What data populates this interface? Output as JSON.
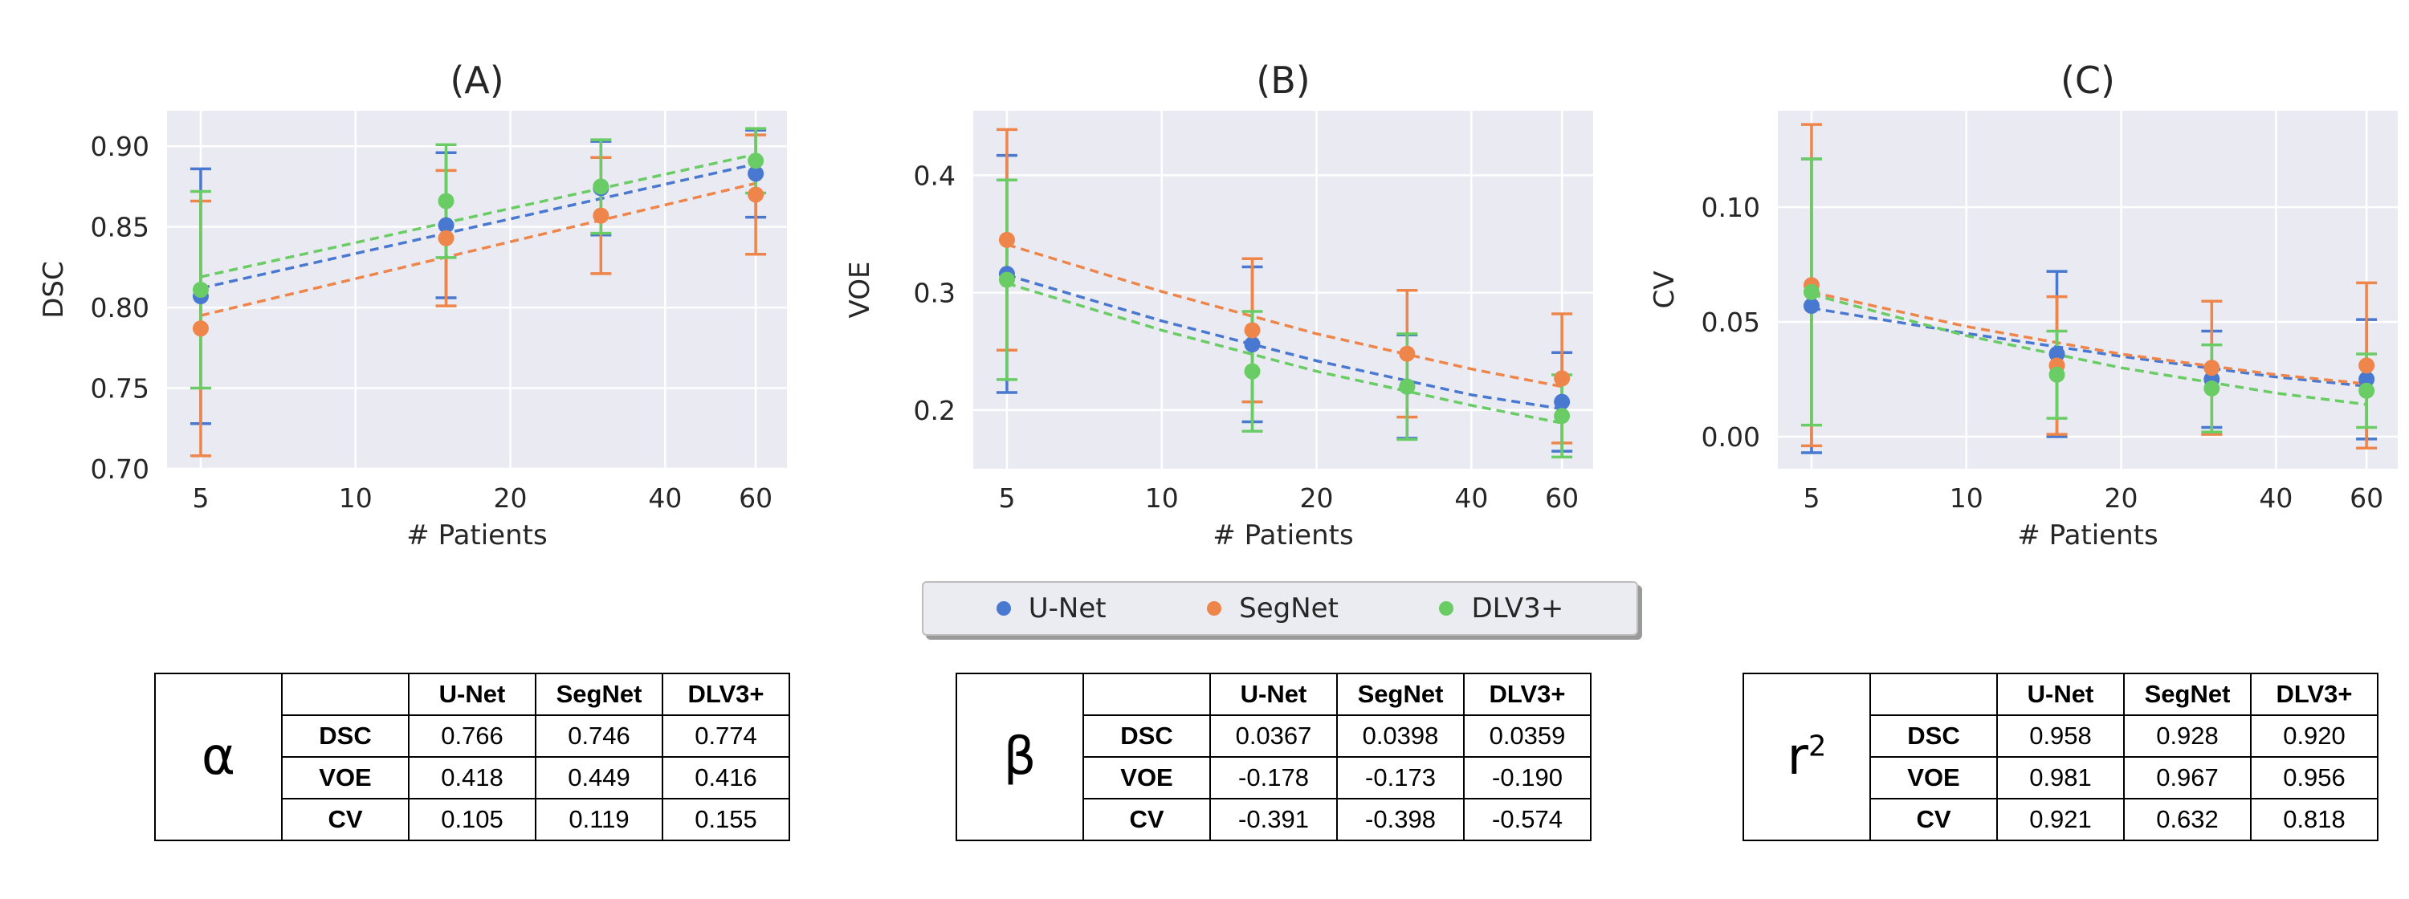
{
  "legend": [
    {
      "name": "U-Net",
      "color": "#4878d0"
    },
    {
      "name": "SegNet",
      "color": "#ee854a"
    },
    {
      "name": "DLV3+",
      "color": "#6acc64"
    }
  ],
  "chart_data": [
    {
      "type": "scatter",
      "title": "(A)",
      "xlabel": "# Patients",
      "ylabel": "DSC",
      "xscale": "log",
      "xlim": [
        4.3,
        69
      ],
      "ylim": [
        0.7,
        0.922
      ],
      "xticks": [
        5,
        10,
        20,
        40,
        60
      ],
      "yticks": [
        0.7,
        0.75,
        0.8,
        0.85,
        0.9
      ],
      "ytick_labels": [
        "0.70",
        "0.75",
        "0.80",
        "0.85",
        "0.90"
      ],
      "grid": true,
      "series": [
        {
          "name": "U-Net",
          "color": "#4878d0",
          "x": [
            5,
            15,
            30,
            60
          ],
          "y": [
            0.807,
            0.851,
            0.874,
            0.883
          ],
          "yerr": [
            0.079,
            0.045,
            0.029,
            0.027
          ],
          "fit": {
            "x": [
              5,
              60
            ],
            "y": [
              0.812,
              0.889
            ]
          }
        },
        {
          "name": "SegNet",
          "color": "#ee854a",
          "x": [
            5,
            15,
            30,
            60
          ],
          "y": [
            0.787,
            0.843,
            0.857,
            0.87
          ],
          "yerr": [
            0.079,
            0.042,
            0.036,
            0.037
          ],
          "fit": {
            "x": [
              5,
              60
            ],
            "y": [
              0.795,
              0.877
            ]
          }
        },
        {
          "name": "DLV3+",
          "color": "#6acc64",
          "x": [
            5,
            15,
            30,
            60
          ],
          "y": [
            0.811,
            0.866,
            0.875,
            0.891
          ],
          "yerr": [
            0.061,
            0.035,
            0.029,
            0.02
          ],
          "fit": {
            "x": [
              5,
              60
            ],
            "y": [
              0.819,
              0.895
            ]
          }
        }
      ]
    },
    {
      "type": "scatter",
      "title": "(B)",
      "xlabel": "# Patients",
      "ylabel": "VOE",
      "xscale": "log",
      "xlim": [
        4.3,
        69
      ],
      "ylim": [
        0.15,
        0.455
      ],
      "xticks": [
        5,
        10,
        20,
        40,
        60
      ],
      "yticks": [
        0.2,
        0.3,
        0.4
      ],
      "ytick_labels": [
        "0.2",
        "0.3",
        "0.4"
      ],
      "grid": true,
      "series": [
        {
          "name": "U-Net",
          "color": "#4878d0",
          "x": [
            5,
            15,
            30,
            60
          ],
          "y": [
            0.316,
            0.256,
            0.22,
            0.207
          ],
          "yerr": [
            0.101,
            0.066,
            0.044,
            0.042
          ],
          "fit": {
            "x": [
              5,
              10,
              20,
              40,
              60
            ],
            "y": [
              0.315,
              0.276,
              0.242,
              0.213,
              0.201
            ]
          }
        },
        {
          "name": "SegNet",
          "color": "#ee854a",
          "x": [
            5,
            15,
            30,
            60
          ],
          "y": [
            0.345,
            0.268,
            0.248,
            0.227
          ],
          "yerr": [
            0.094,
            0.061,
            0.054,
            0.055
          ],
          "fit": {
            "x": [
              5,
              10,
              20,
              40,
              60
            ],
            "y": [
              0.341,
              0.301,
              0.265,
              0.235,
              0.22
            ]
          }
        },
        {
          "name": "DLV3+",
          "color": "#6acc64",
          "x": [
            5,
            15,
            30,
            60
          ],
          "y": [
            0.311,
            0.233,
            0.22,
            0.195
          ],
          "yerr": [
            0.085,
            0.051,
            0.045,
            0.035
          ],
          "fit": {
            "x": [
              5,
              10,
              20,
              40,
              60
            ],
            "y": [
              0.308,
              0.268,
              0.233,
              0.204,
              0.189
            ]
          }
        }
      ]
    },
    {
      "type": "scatter",
      "title": "(C)",
      "xlabel": "# Patients",
      "ylabel": "CV",
      "xscale": "log",
      "xlim": [
        4.3,
        69
      ],
      "ylim": [
        -0.014,
        0.142
      ],
      "xticks": [
        5,
        10,
        20,
        40,
        60
      ],
      "yticks": [
        0.0,
        0.05,
        0.1
      ],
      "ytick_labels": [
        "0.00",
        "0.05",
        "0.10"
      ],
      "grid": true,
      "series": [
        {
          "name": "U-Net",
          "color": "#4878d0",
          "x": [
            5,
            15,
            30,
            60
          ],
          "y": [
            0.057,
            0.036,
            0.025,
            0.025
          ],
          "yerr": [
            0.064,
            0.036,
            0.021,
            0.026
          ],
          "fit": {
            "x": [
              5,
              10,
              20,
              40,
              60
            ],
            "y": [
              0.056,
              0.045,
              0.035,
              0.026,
              0.022
            ]
          }
        },
        {
          "name": "SegNet",
          "color": "#ee854a",
          "x": [
            5,
            15,
            30,
            60
          ],
          "y": [
            0.066,
            0.031,
            0.03,
            0.031
          ],
          "yerr": [
            0.07,
            0.03,
            0.029,
            0.036
          ],
          "fit": {
            "x": [
              5,
              10,
              20,
              40,
              60
            ],
            "y": [
              0.063,
              0.048,
              0.036,
              0.027,
              0.023
            ]
          }
        },
        {
          "name": "DLV3+",
          "color": "#6acc64",
          "x": [
            5,
            15,
            30,
            60
          ],
          "y": [
            0.063,
            0.027,
            0.021,
            0.02
          ],
          "yerr": [
            0.058,
            0.019,
            0.019,
            0.016
          ],
          "fit": {
            "x": [
              5,
              10,
              20,
              40,
              60
            ],
            "y": [
              0.062,
              0.044,
              0.03,
              0.019,
              0.014
            ]
          }
        }
      ]
    }
  ],
  "tables": [
    {
      "symbol": "α",
      "columns": [
        "U-Net",
        "SegNet",
        "DLV3+"
      ],
      "rows": [
        {
          "label": "DSC",
          "values": [
            "0.766",
            "0.746",
            "0.774"
          ]
        },
        {
          "label": "VOE",
          "values": [
            "0.418",
            "0.449",
            "0.416"
          ]
        },
        {
          "label": "CV",
          "values": [
            "0.105",
            "0.119",
            "0.155"
          ]
        }
      ]
    },
    {
      "symbol": "β",
      "columns": [
        "U-Net",
        "SegNet",
        "DLV3+"
      ],
      "rows": [
        {
          "label": "DSC",
          "values": [
            "0.0367",
            "0.0398",
            "0.0359"
          ]
        },
        {
          "label": "VOE",
          "values": [
            "-0.178",
            "-0.173",
            "-0.190"
          ]
        },
        {
          "label": "CV",
          "values": [
            "-0.391",
            "-0.398",
            "-0.574"
          ]
        }
      ]
    },
    {
      "symbol": "r",
      "symbol_sup": "2",
      "columns": [
        "U-Net",
        "SegNet",
        "DLV3+"
      ],
      "rows": [
        {
          "label": "DSC",
          "values": [
            "0.958",
            "0.928",
            "0.920"
          ]
        },
        {
          "label": "VOE",
          "values": [
            "0.981",
            "0.967",
            "0.956"
          ]
        },
        {
          "label": "CV",
          "values": [
            "0.921",
            "0.632",
            "0.818"
          ]
        }
      ]
    }
  ]
}
